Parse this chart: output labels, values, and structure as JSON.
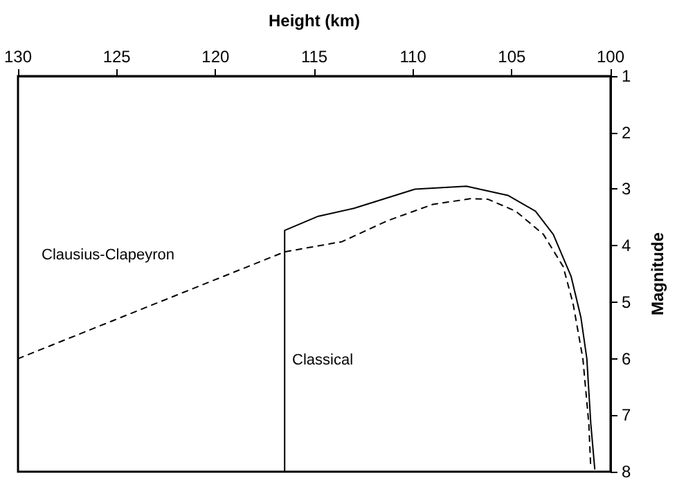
{
  "chart_data": {
    "type": "line",
    "xlabel": "Height (km)",
    "ylabel": "Magnitude",
    "xlim": [
      130,
      100
    ],
    "xticks": [
      130,
      125,
      120,
      115,
      110,
      105,
      100
    ],
    "ylim": [
      8,
      1
    ],
    "yticks": [
      1,
      2,
      3,
      4,
      5,
      6,
      7,
      8
    ],
    "marker": "none",
    "series": [
      {
        "color": "#000000",
        "line_style": "solid",
        "x": [
          116.5,
          116.5,
          114.8,
          113.0,
          109.9,
          107.3,
          105.2,
          103.8,
          102.9,
          102.0,
          101.5,
          101.2,
          101.0,
          100.8
        ],
        "values": [
          8,
          3.73,
          3.48,
          3.34,
          3.0,
          2.95,
          3.11,
          3.39,
          3.8,
          4.54,
          5.27,
          6.0,
          7.15,
          7.95
        ]
      },
      {
        "color": "#000000",
        "line_style": "dashed",
        "x": [
          130,
          116.5,
          113.6,
          111.3,
          109.0,
          107.1,
          106.2,
          104.8,
          103.4,
          102.4,
          101.9,
          101.4,
          101.1,
          101.0
        ],
        "values": [
          6.0,
          4.11,
          3.93,
          3.56,
          3.27,
          3.17,
          3.18,
          3.39,
          3.8,
          4.37,
          5.02,
          6.0,
          7.15,
          7.95
        ]
      }
    ],
    "annotations": [
      "Clausius-Clapeyron",
      "Classical"
    ]
  }
}
